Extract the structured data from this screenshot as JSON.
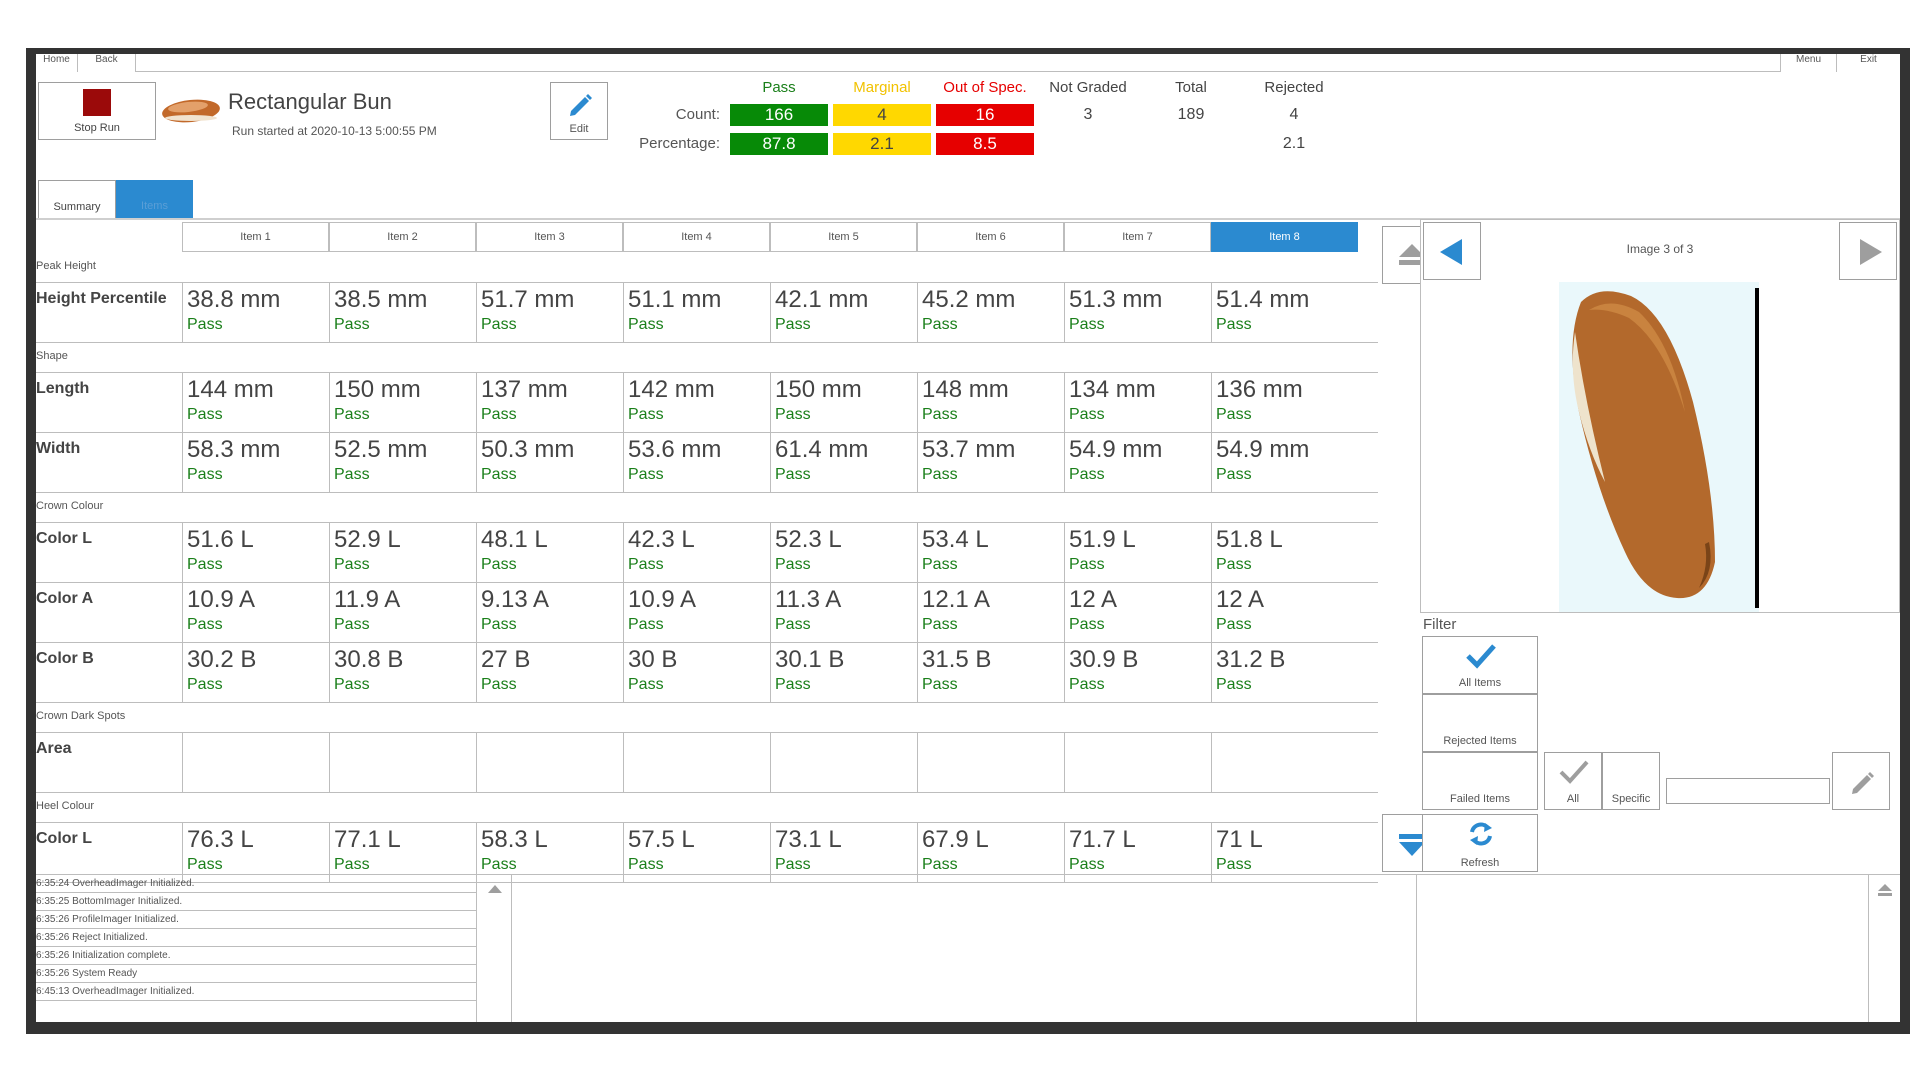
{
  "topbar": {
    "home": "Home",
    "back": "Back",
    "menu": "Menu",
    "exit": "Exit"
  },
  "header": {
    "stop_label": "Stop Run",
    "product_name": "Rectangular Bun",
    "run_started": "Run started at 2020-10-13 5:00:55 PM",
    "edit_label": "Edit"
  },
  "stats": {
    "headers": {
      "pass": "Pass",
      "marginal": "Marginal",
      "out_of_spec": "Out of Spec.",
      "not_graded": "Not Graded",
      "total": "Total",
      "rejected": "Rejected"
    },
    "count_label": "Count:",
    "percentage_label": "Percentage:",
    "count": {
      "pass": "166",
      "marginal": "4",
      "out_of_spec": "16",
      "not_graded": "3",
      "total": "189",
      "rejected": "4"
    },
    "percentage": {
      "pass": "87.8",
      "marginal": "2.1",
      "out_of_spec": "8.5",
      "rejected": "2.1"
    },
    "colors": {
      "pass": "#078a07",
      "marginal": "#ffd800",
      "out_of_spec": "#e60000",
      "marginal_text": "#f2c200",
      "out_of_spec_text": "#e60000",
      "pass_text": "#1a7f1a"
    }
  },
  "tabs": {
    "summary": "Summary",
    "items": "Items"
  },
  "table": {
    "columns": [
      "Item 1",
      "Item 2",
      "Item 3",
      "Item 4",
      "Item 5",
      "Item 6",
      "Item 7",
      "Item 8"
    ],
    "active_column": 7,
    "sections": [
      {
        "label": "Peak Height",
        "rows": [
          {
            "label": "Height Percentile",
            "values": [
              "38.8 mm",
              "38.5 mm",
              "51.7 mm",
              "51.1 mm",
              "42.1 mm",
              "45.2 mm",
              "51.3 mm",
              "51.4 mm"
            ],
            "status": [
              "Pass",
              "Pass",
              "Pass",
              "Pass",
              "Pass",
              "Pass",
              "Pass",
              "Pass"
            ]
          }
        ]
      },
      {
        "label": "Shape",
        "rows": [
          {
            "label": "Length",
            "values": [
              "144 mm",
              "150 mm",
              "137 mm",
              "142 mm",
              "150 mm",
              "148 mm",
              "134 mm",
              "136 mm"
            ],
            "status": [
              "Pass",
              "Pass",
              "Pass",
              "Pass",
              "Pass",
              "Pass",
              "Pass",
              "Pass"
            ]
          },
          {
            "label": "Width",
            "values": [
              "58.3 mm",
              "52.5 mm",
              "50.3 mm",
              "53.6 mm",
              "61.4 mm",
              "53.7 mm",
              "54.9 mm",
              "54.9 mm"
            ],
            "status": [
              "Pass",
              "Pass",
              "Pass",
              "Pass",
              "Pass",
              "Pass",
              "Pass",
              "Pass"
            ]
          }
        ]
      },
      {
        "label": "Crown Colour",
        "rows": [
          {
            "label": "Color L",
            "values": [
              "51.6 L",
              "52.9 L",
              "48.1 L",
              "42.3 L",
              "52.3 L",
              "53.4 L",
              "51.9 L",
              "51.8 L"
            ],
            "status": [
              "Pass",
              "Pass",
              "Pass",
              "Pass",
              "Pass",
              "Pass",
              "Pass",
              "Pass"
            ]
          },
          {
            "label": "Color A",
            "values": [
              "10.9 A",
              "11.9 A",
              "9.13 A",
              "10.9 A",
              "11.3 A",
              "12.1 A",
              "12 A",
              "12 A"
            ],
            "status": [
              "Pass",
              "Pass",
              "Pass",
              "Pass",
              "Pass",
              "Pass",
              "Pass",
              "Pass"
            ]
          },
          {
            "label": "Color B",
            "values": [
              "30.2 B",
              "30.8 B",
              "27 B",
              "30 B",
              "30.1 B",
              "31.5 B",
              "30.9 B",
              "31.2 B"
            ],
            "status": [
              "Pass",
              "Pass",
              "Pass",
              "Pass",
              "Pass",
              "Pass",
              "Pass",
              "Pass"
            ]
          }
        ]
      },
      {
        "label": "Crown Dark Spots",
        "rows": [
          {
            "label": "Area",
            "values": [
              "",
              "",
              "",
              "",
              "",
              "",
              "",
              ""
            ],
            "status": [
              "",
              "",
              "",
              "",
              "",
              "",
              "",
              ""
            ]
          }
        ]
      },
      {
        "label": "Heel Colour",
        "rows": [
          {
            "label": "Color L",
            "values": [
              "76.3 L",
              "77.1 L",
              "58.3 L",
              "57.5 L",
              "73.1 L",
              "67.9 L",
              "71.7 L",
              "71 L"
            ],
            "status": [
              "Pass",
              "Pass",
              "Pass",
              "Pass",
              "Pass",
              "Pass",
              "Pass",
              "Pass"
            ]
          }
        ]
      }
    ]
  },
  "image_viewer": {
    "counter": "Image 3 of 3"
  },
  "filter": {
    "label": "Filter",
    "all_items": "All Items",
    "rejected_items": "Rejected Items",
    "failed_items": "Failed Items",
    "all": "All",
    "specific": "Specific",
    "specific_value": "",
    "refresh": "Refresh"
  },
  "log": [
    "6:35:24 OverheadImager Initialized.",
    "6:35:25 BottomImager Initialized.",
    "6:35:26 ProfileImager Initialized.",
    "6:35:26 Reject Initialized.",
    "6:35:26 Initialization complete.",
    "6:35:26 System Ready",
    "6:45:13 OverheadImager Initialized."
  ]
}
